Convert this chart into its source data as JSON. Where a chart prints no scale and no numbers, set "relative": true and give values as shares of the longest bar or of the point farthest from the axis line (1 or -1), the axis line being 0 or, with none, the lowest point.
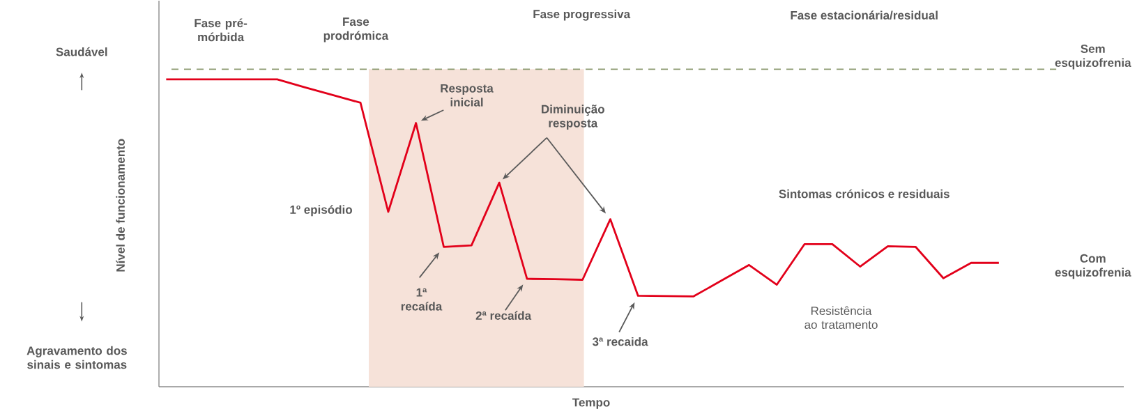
{
  "chart_data": {
    "type": "line",
    "relative": true,
    "xlabel": "Tempo",
    "ylabel": "Nível de funcionamento",
    "categories": [
      null,
      null,
      null,
      null,
      null,
      null,
      null,
      null,
      null,
      null,
      null,
      null,
      null,
      null,
      null,
      null,
      null,
      null,
      null,
      null,
      null,
      null,
      null,
      null,
      null,
      null,
      null,
      null,
      null,
      null,
      null
    ],
    "line_style": "solid",
    "series": [
      {
        "color": "#e2001a",
        "values": [
          1,
          1,
          1,
          1,
          1,
          0.974,
          0.949,
          0.924,
          0.569,
          0.858,
          0.455,
          0.46,
          0.664,
          0.351,
          0.35,
          0.348,
          0.545,
          0.296,
          0.295,
          0.294,
          0.345,
          0.396,
          0.332,
          0.464,
          0.464,
          0.391,
          0.457,
          0.455,
          0.353,
          0.403,
          0.403
        ]
      }
    ],
    "ref_lines": [
      {
        "axis": "y",
        "value": 1.033,
        "label": "Sem esquizofrenia",
        "color": "#8c9a70",
        "line_style": "dashed"
      }
    ],
    "annotations": [
      "Fase pré-mórbida",
      "Fase prodrómica",
      "Fase progressiva",
      "Fase estacionária/residual",
      "Saudável",
      "Agravamento dos sinais e sintomas",
      "Com esquizofrenia",
      "Resposta inicial",
      "1º episódio",
      "1ª recaída",
      "Diminuição resposta",
      "2ª recaída",
      "3ª recaida",
      "Sintomas crónicos e residuais",
      "Resistência ao tratamento"
    ]
  }
}
